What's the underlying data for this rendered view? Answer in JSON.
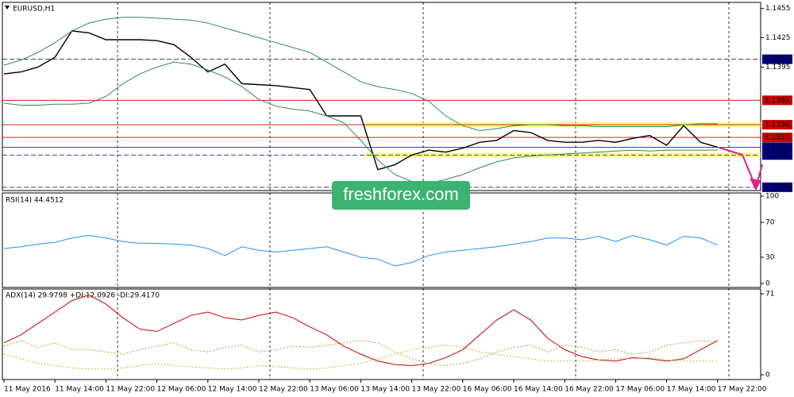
{
  "chart_data": [
    {
      "type": "line",
      "title": "EURUSD,H1",
      "watermark": "freshforex.com",
      "categories": [
        "11 May 2016",
        null,
        null,
        "11 May 14:00",
        null,
        null,
        "11 May 22:00",
        null,
        null,
        "12 May 06:00",
        null,
        null,
        "12 May 14:00",
        null,
        null,
        "12 May 22:00",
        null,
        null,
        "13 May 06:00",
        null,
        null,
        "13 May 14:00",
        null,
        null,
        "13 May 22:00",
        null,
        null,
        "16 May 06:00",
        null,
        null,
        "16 May 14:00",
        null,
        null,
        "16 May 22:00",
        null,
        null,
        "17 May 06:00",
        null,
        null,
        "17 May 14:00",
        null,
        null,
        "17 May 22:00"
      ],
      "series": [
        {
          "name": "close",
          "color": "#000000",
          "values": [
            1.1388,
            1.139,
            1.1395,
            1.1405,
            1.1432,
            1.143,
            1.1423,
            1.1423,
            1.1423,
            1.1422,
            1.1418,
            1.1405,
            1.139,
            1.1398,
            1.1378,
            1.1377,
            1.1376,
            1.1374,
            1.1372,
            1.1345,
            1.1345,
            1.1345,
            1.129,
            1.1295,
            1.1305,
            1.131,
            1.1308,
            1.1312,
            1.1318,
            1.132,
            1.133,
            1.1328,
            1.132,
            1.1318,
            1.1318,
            1.132,
            1.1318,
            1.1322,
            1.1325,
            1.1315,
            1.1335,
            1.1318,
            1.1313
          ]
        },
        {
          "name": "upper",
          "color": "#2e8b57",
          "values": [
            1.1397,
            1.1402,
            1.141,
            1.142,
            1.1432,
            1.144,
            1.1444,
            1.1446,
            1.1446,
            1.1445,
            1.1444,
            1.1443,
            1.144,
            1.1435,
            1.143,
            1.1425,
            1.142,
            1.1415,
            1.141,
            1.14,
            1.139,
            1.138,
            1.1375,
            1.1372,
            1.1368,
            1.136,
            1.1345,
            1.1335,
            1.133,
            1.1332,
            1.1335,
            1.1336,
            1.1336,
            1.1335,
            1.1335,
            1.1334,
            1.1334,
            1.1334,
            1.1334,
            1.1334,
            1.1336,
            1.1337,
            1.1337
          ]
        },
        {
          "name": "lower",
          "color": "#2e8b57",
          "values": [
            1.1358,
            1.1356,
            1.1356,
            1.1357,
            1.1357,
            1.1358,
            1.1365,
            1.1378,
            1.1388,
            1.1395,
            1.14,
            1.1398,
            1.1392,
            1.1385,
            1.1375,
            1.1362,
            1.1355,
            1.1352,
            1.135,
            1.1345,
            1.1338,
            1.132,
            1.13,
            1.1285,
            1.1278,
            1.1276,
            1.128,
            1.1285,
            1.1292,
            1.1298,
            1.1302,
            1.1304,
            1.1305,
            1.1306,
            1.1307,
            1.1308,
            1.1309,
            1.131,
            1.1309,
            1.131,
            1.131,
            1.131,
            1.131
          ]
        }
      ],
      "ylim": [
        1.1267,
        1.1462
      ],
      "yticks": [
        1.1455,
        1.1425,
        1.1395
      ],
      "levels": [
        {
          "value": 1.1403,
          "color": "#000080",
          "dashed": true
        },
        {
          "value": 1.1361,
          "color": "#cc0000"
        },
        {
          "value": 1.1336,
          "color": "#cc0000",
          "highlight": "#ffff66"
        },
        {
          "value": 1.1323,
          "color": "#cc0000"
        },
        {
          "value": 1.1313,
          "color": "#000080"
        },
        {
          "value": 1.1305,
          "color": "#000080",
          "dashed": true,
          "highlight": "#ffff66"
        },
        {
          "value": 1.1272,
          "color": "#000080",
          "dashed": true
        }
      ]
    },
    {
      "type": "line",
      "title": "RSI(14) 44.4512",
      "series": [
        {
          "name": "RSI",
          "color": "#1e90ff",
          "values": [
            40,
            42,
            45,
            47,
            52,
            55,
            52,
            48,
            46,
            46,
            45,
            44,
            40,
            32,
            42,
            38,
            36,
            38,
            40,
            42,
            36,
            30,
            28,
            20,
            24,
            32,
            36,
            38,
            40,
            42,
            45,
            48,
            52,
            52,
            50,
            54,
            48,
            55,
            50,
            44,
            54,
            52,
            44
          ]
        }
      ],
      "ylim": [
        0,
        100
      ],
      "yticks": [
        100,
        70,
        30,
        0
      ]
    },
    {
      "type": "line",
      "title": "ADX(14) 29.9798 +DI:12.0926 -DI:29.4170",
      "series": [
        {
          "name": "ADX",
          "color": "#cc0000",
          "values": [
            28,
            35,
            45,
            55,
            65,
            70,
            62,
            50,
            40,
            38,
            45,
            52,
            55,
            50,
            48,
            52,
            55,
            50,
            42,
            35,
            25,
            18,
            12,
            9,
            8,
            10,
            15,
            22,
            35,
            48,
            57,
            48,
            32,
            22,
            16,
            13,
            12,
            15,
            14,
            12,
            14,
            22,
            30
          ],
          "dashed": false
        },
        {
          "name": "+DI",
          "color": "#9acd32",
          "values": [
            18,
            14,
            10,
            8,
            6,
            5,
            5,
            6,
            8,
            10,
            8,
            7,
            6,
            5,
            6,
            8,
            7,
            6,
            5,
            6,
            8,
            10,
            14,
            18,
            22,
            24,
            26,
            24,
            20,
            18,
            16,
            14,
            12,
            12,
            12,
            13,
            14,
            14,
            15,
            13,
            12,
            12,
            12
          ],
          "dashed": true
        },
        {
          "name": "-DI",
          "color": "#b8a040",
          "values": [
            25,
            30,
            24,
            28,
            22,
            22,
            20,
            18,
            22,
            25,
            28,
            22,
            20,
            24,
            26,
            20,
            22,
            25,
            24,
            26,
            28,
            30,
            28,
            20,
            14,
            10,
            8,
            10,
            14,
            20,
            24,
            26,
            20,
            26,
            24,
            20,
            22,
            18,
            20,
            26,
            28,
            30,
            29
          ],
          "dashed": true
        }
      ],
      "ylim": [
        0,
        71
      ],
      "yticks": [
        71,
        0
      ]
    }
  ]
}
